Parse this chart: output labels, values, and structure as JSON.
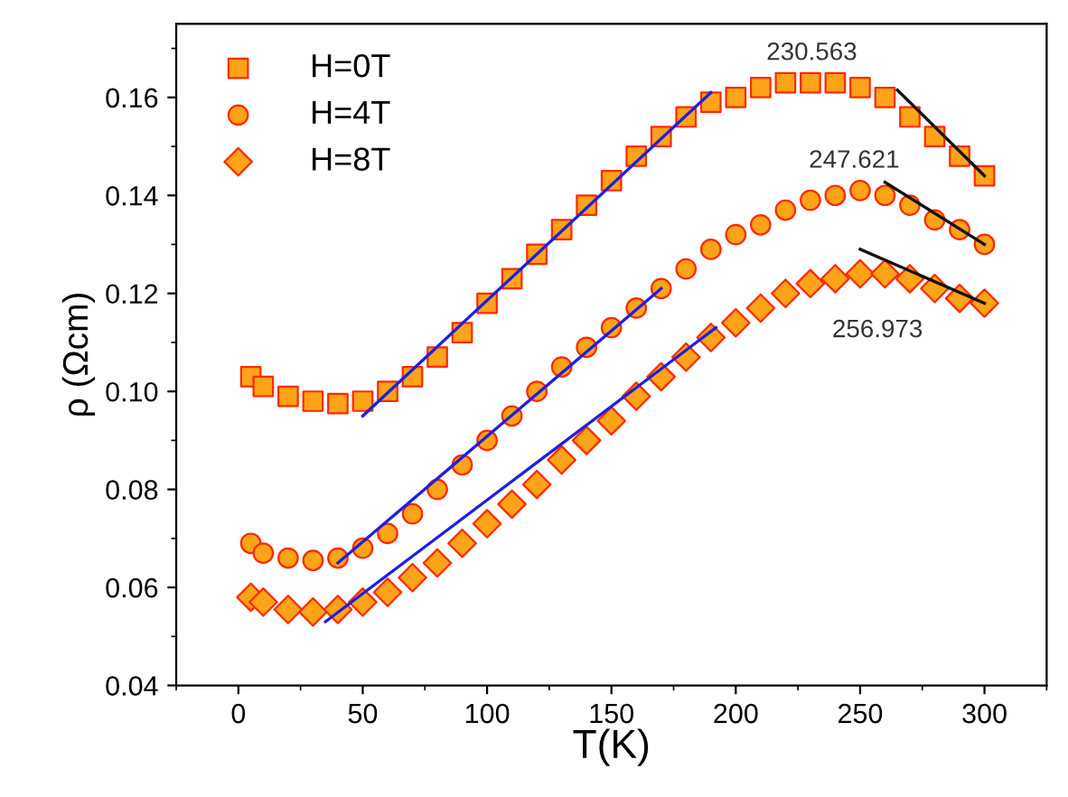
{
  "chart_data": {
    "type": "scatter",
    "xlabel": "T(K)",
    "ylabel": "ρ (Ωcm)",
    "xlim": [
      -25,
      325
    ],
    "xticks": [
      0,
      50,
      100,
      150,
      200,
      250,
      300
    ],
    "ylim": [
      0.04,
      0.175
    ],
    "yticks": [
      0.04,
      0.06,
      0.08,
      {
        "value": 0.1,
        "label": "0.10"
      },
      0.12,
      0.14,
      0.16
    ],
    "grid": false,
    "legend": "top left",
    "x": [
      5,
      10,
      20,
      30,
      40,
      50,
      60,
      70,
      80,
      90,
      100,
      110,
      120,
      130,
      140,
      150,
      160,
      170,
      180,
      190,
      200,
      210,
      220,
      230,
      240,
      250,
      260,
      270,
      280,
      290,
      300
    ],
    "series": [
      {
        "name": "H=0T",
        "color": "#ffa319",
        "marker": "square",
        "values": [
          0.103,
          0.101,
          0.099,
          0.098,
          0.0975,
          0.098,
          0.1,
          0.103,
          0.107,
          0.112,
          0.118,
          0.123,
          0.128,
          0.133,
          0.138,
          0.143,
          0.148,
          0.152,
          0.156,
          0.159,
          0.16,
          0.162,
          0.163,
          0.163,
          0.163,
          0.162,
          0.16,
          0.156,
          0.152,
          0.148,
          0.144
        ]
      },
      {
        "name": "H=4T",
        "color": "#ffa319",
        "marker": "circle",
        "values": [
          0.069,
          0.067,
          0.066,
          0.0655,
          0.066,
          0.068,
          0.071,
          0.075,
          0.08,
          0.085,
          0.09,
          0.095,
          0.1,
          0.105,
          0.109,
          0.113,
          0.117,
          0.121,
          0.125,
          0.129,
          0.132,
          0.134,
          0.137,
          0.139,
          0.14,
          0.141,
          0.14,
          0.138,
          0.135,
          0.133,
          0.13
        ]
      },
      {
        "name": "H=8T",
        "color": "#ffa319",
        "marker": "diamond",
        "values": [
          0.058,
          0.057,
          0.0555,
          0.055,
          0.0555,
          0.057,
          0.059,
          0.062,
          0.065,
          0.069,
          0.073,
          0.077,
          0.081,
          0.086,
          0.09,
          0.094,
          0.099,
          0.103,
          0.107,
          0.111,
          0.114,
          0.117,
          0.12,
          0.122,
          0.123,
          0.124,
          0.124,
          0.123,
          0.121,
          0.119,
          0.118
        ]
      },
      {
        "type": "line",
        "color": "#1f1fe0",
        "x": [
          50,
          190
        ],
        "values": [
          0.095,
          0.161
        ]
      },
      {
        "type": "line",
        "color": "#1f1fe0",
        "x": [
          40,
          170
        ],
        "values": [
          0.065,
          0.121
        ]
      },
      {
        "type": "line",
        "color": "#1f1fe0",
        "x": [
          35,
          192
        ],
        "values": [
          0.053,
          0.113
        ]
      },
      {
        "type": "line",
        "color": "#111111",
        "x": [
          265,
          300
        ],
        "values": [
          0.1615,
          0.144
        ]
      },
      {
        "type": "line",
        "color": "#111111",
        "x": [
          260,
          300
        ],
        "values": [
          0.1427,
          0.13
        ]
      },
      {
        "type": "line",
        "color": "#111111",
        "x": [
          250,
          300
        ],
        "values": [
          0.129,
          0.118
        ]
      }
    ],
    "annotations": [
      {
        "text": "230.563",
        "x": 230.563,
        "y": 0.163
      },
      {
        "text": "247.621",
        "x": 247.621,
        "y": 0.141
      },
      {
        "text": "256.973",
        "x": 256.973,
        "y": 0.124
      }
    ]
  }
}
